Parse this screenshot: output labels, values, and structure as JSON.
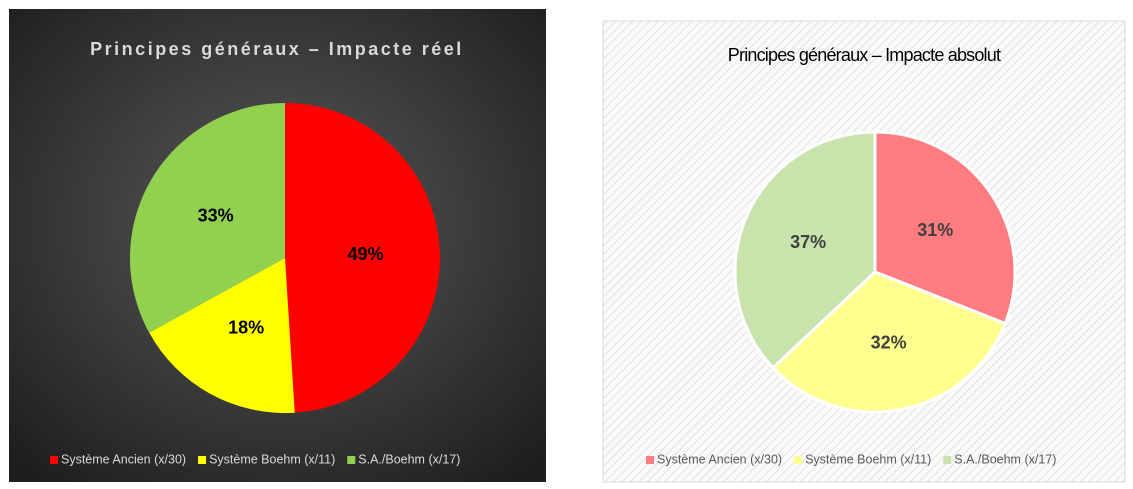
{
  "chart_data": [
    {
      "type": "pie",
      "title": "Principes généraux – Impacte réel",
      "categories": [
        "Système Ancien (x/30)",
        "Système Boehm (x/11)",
        "S.A./Boehm (x/17)"
      ],
      "values": [
        49,
        18,
        33
      ],
      "value_labels": [
        "49%",
        "18%",
        "33%"
      ],
      "colors": [
        "#ff0000",
        "#ffff00",
        "#92d050"
      ],
      "legend": "bottom"
    },
    {
      "type": "pie",
      "title": "Principes généraux – Impacte absolut",
      "categories": [
        "Système Ancien (x/30)",
        "Système Boehm (x/11)",
        "S.A./Boehm (x/17)"
      ],
      "values": [
        31,
        32,
        37
      ],
      "value_labels": [
        "31%",
        "32%",
        "37%"
      ],
      "colors": [
        "#ff7c80",
        "#ffff8f",
        "#c9e3ad"
      ],
      "legend": "bottom"
    }
  ]
}
